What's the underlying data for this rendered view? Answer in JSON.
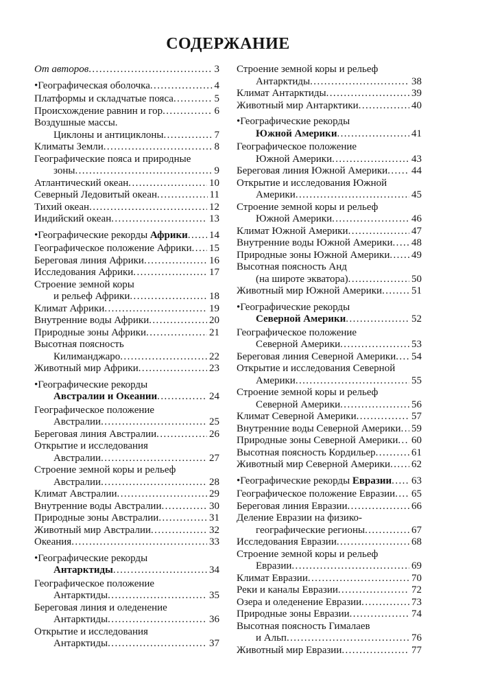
{
  "title": "СОДЕРЖАНИЕ",
  "colors": {
    "page_background": "#ffffff",
    "text": "#141414"
  },
  "columns": [
    [
      {
        "lines": [
          "От авторов"
        ],
        "page": "3",
        "italic": true
      },
      {
        "lines": [
          "•Географическая оболочка"
        ],
        "page": "4",
        "section": true
      },
      {
        "lines": [
          "Платформы и складчатые пояса"
        ],
        "page": "5"
      },
      {
        "lines": [
          "Происхождение равнин и гор"
        ],
        "page": "6"
      },
      {
        "lines": [
          "Воздушные массы.",
          "Циклоны и антициклоны"
        ],
        "page": "7"
      },
      {
        "lines": [
          "Климаты Земли"
        ],
        "page": "8"
      },
      {
        "lines": [
          "Географические пояса и природные",
          "зоны"
        ],
        "page": "9"
      },
      {
        "lines": [
          "Атлантический океан"
        ],
        "page": "10"
      },
      {
        "lines": [
          "Северный Ледовитый океан"
        ],
        "page": "11"
      },
      {
        "lines": [
          "Тихий океан"
        ],
        "page": "12"
      },
      {
        "lines": [
          "Индийский океан"
        ],
        "page": "13"
      },
      {
        "lines": [
          [
            {
              "t": "•Географические рекорды "
            },
            {
              "t": "Африки",
              "b": true
            }
          ]
        ],
        "page": "14",
        "section": true
      },
      {
        "lines": [
          "Географическое положение Африки"
        ],
        "page": "15"
      },
      {
        "lines": [
          "Береговая линия Африки"
        ],
        "page": "16"
      },
      {
        "lines": [
          "Исследования Африки"
        ],
        "page": "17"
      },
      {
        "lines": [
          "Строение земной коры",
          "и рельеф Африки"
        ],
        "page": "18"
      },
      {
        "lines": [
          "Климат Африки"
        ],
        "page": "19"
      },
      {
        "lines": [
          "Внутренние воды Африки"
        ],
        "page": "20"
      },
      {
        "lines": [
          "Природные зоны Африки"
        ],
        "page": "21"
      },
      {
        "lines": [
          "Высотная поясность",
          "Килиманджаро"
        ],
        "page": "22"
      },
      {
        "lines": [
          "Животный мир Африки"
        ],
        "page": "23"
      },
      {
        "lines": [
          "•Географические рекорды",
          [
            {
              "t": "Австралии и Океании",
              "b": true
            }
          ]
        ],
        "page": "24",
        "section": true
      },
      {
        "lines": [
          "Географическое положение",
          "Австралии"
        ],
        "page": "25"
      },
      {
        "lines": [
          "Береговая линия Австралии"
        ],
        "page": "26"
      },
      {
        "lines": [
          "Открытие и исследования",
          "Австралии"
        ],
        "page": "27"
      },
      {
        "lines": [
          "Строение земной коры и рельеф",
          "Австралии"
        ],
        "page": "28"
      },
      {
        "lines": [
          "Климат Австралии"
        ],
        "page": "29"
      },
      {
        "lines": [
          "Внутренние воды Австралии"
        ],
        "page": "30"
      },
      {
        "lines": [
          "Природные зоны Австралии"
        ],
        "page": "31"
      },
      {
        "lines": [
          "Животный мир Австралии"
        ],
        "page": "32"
      },
      {
        "lines": [
          "Океания"
        ],
        "page": "33"
      },
      {
        "lines": [
          "•Географические рекорды",
          [
            {
              "t": "Антарктиды",
              "b": true
            }
          ]
        ],
        "page": "34",
        "section": true
      },
      {
        "lines": [
          "Географическое положение",
          "Антарктиды"
        ],
        "page": "35"
      },
      {
        "lines": [
          "Береговая линия и оледенение",
          "Антарктиды"
        ],
        "page": "36"
      },
      {
        "lines": [
          "Открытие и исследования",
          "Антарктиды"
        ],
        "page": "37"
      }
    ],
    [
      {
        "lines": [
          "Строение земной коры и рельеф",
          "Антарктиды"
        ],
        "page": "38"
      },
      {
        "lines": [
          "Климат Антарктиды"
        ],
        "page": "39"
      },
      {
        "lines": [
          "Животный мир Антарктики"
        ],
        "page": "40"
      },
      {
        "lines": [
          "•Географические рекорды",
          [
            {
              "t": "Южной Америки",
              "b": true
            }
          ]
        ],
        "page": "41",
        "section": true
      },
      {
        "lines": [
          "Географическое положение",
          "Южной Америки"
        ],
        "page": "43"
      },
      {
        "lines": [
          "Береговая линия Южной Америки"
        ],
        "page": "44"
      },
      {
        "lines": [
          "Открытие и исследования Южной",
          "Америки"
        ],
        "page": "45"
      },
      {
        "lines": [
          "Строение земной коры и рельеф",
          "Южной Америки"
        ],
        "page": "46"
      },
      {
        "lines": [
          "Климат Южной Америки"
        ],
        "page": "47"
      },
      {
        "lines": [
          "Внутренние воды Южной Америки"
        ],
        "page": "48"
      },
      {
        "lines": [
          "Природные зоны Южной Америки"
        ],
        "page": "49"
      },
      {
        "lines": [
          "Высотная поясность Анд",
          "(на широте экватора)"
        ],
        "page": "50"
      },
      {
        "lines": [
          "Животный мир Южной Америки"
        ],
        "page": "51"
      },
      {
        "lines": [
          "•Географические рекорды",
          [
            {
              "t": "Северной Америки",
              "b": true
            }
          ]
        ],
        "page": "52",
        "section": true
      },
      {
        "lines": [
          "Географическое положение",
          "Северной Америки"
        ],
        "page": "53"
      },
      {
        "lines": [
          "Береговая линия Северной Америки"
        ],
        "page": "54"
      },
      {
        "lines": [
          "Открытие и исследования Северной",
          "Америки"
        ],
        "page": "55"
      },
      {
        "lines": [
          "Строение земной коры и рельеф",
          "Северной Америки"
        ],
        "page": "56"
      },
      {
        "lines": [
          "Климат Северной Америки"
        ],
        "page": "57"
      },
      {
        "lines": [
          "Внутренние воды Северной Америки"
        ],
        "page": "59"
      },
      {
        "lines": [
          "Природные зоны Северной Америки"
        ],
        "page": "60"
      },
      {
        "lines": [
          "Высотная поясность Кордильер"
        ],
        "page": "61"
      },
      {
        "lines": [
          "Животный мир Северной Америки"
        ],
        "page": "62"
      },
      {
        "lines": [
          [
            {
              "t": "•Географические рекорды "
            },
            {
              "t": "Евразии",
              "b": true
            }
          ]
        ],
        "page": "63",
        "section": true
      },
      {
        "lines": [
          "Географическое положение Евразии"
        ],
        "page": "65"
      },
      {
        "lines": [
          "Береговая линия Евразии"
        ],
        "page": "66"
      },
      {
        "lines": [
          "Деление Евразии на физико-",
          "географические регионы"
        ],
        "page": "67"
      },
      {
        "lines": [
          "Исследования Евразии"
        ],
        "page": "68"
      },
      {
        "lines": [
          "Строение земной коры и рельеф",
          "Евразии"
        ],
        "page": "69"
      },
      {
        "lines": [
          "Климат Евразии"
        ],
        "page": "70"
      },
      {
        "lines": [
          "Реки и каналы Евразии"
        ],
        "page": "72"
      },
      {
        "lines": [
          "Озера и оледенение Евразии"
        ],
        "page": "73"
      },
      {
        "lines": [
          "Природные зоны Евразии"
        ],
        "page": "74"
      },
      {
        "lines": [
          "Высотная поясность Гималаев",
          "и Альп"
        ],
        "page": "76"
      },
      {
        "lines": [
          "Животный мир Евразии"
        ],
        "page": "77"
      }
    ]
  ]
}
